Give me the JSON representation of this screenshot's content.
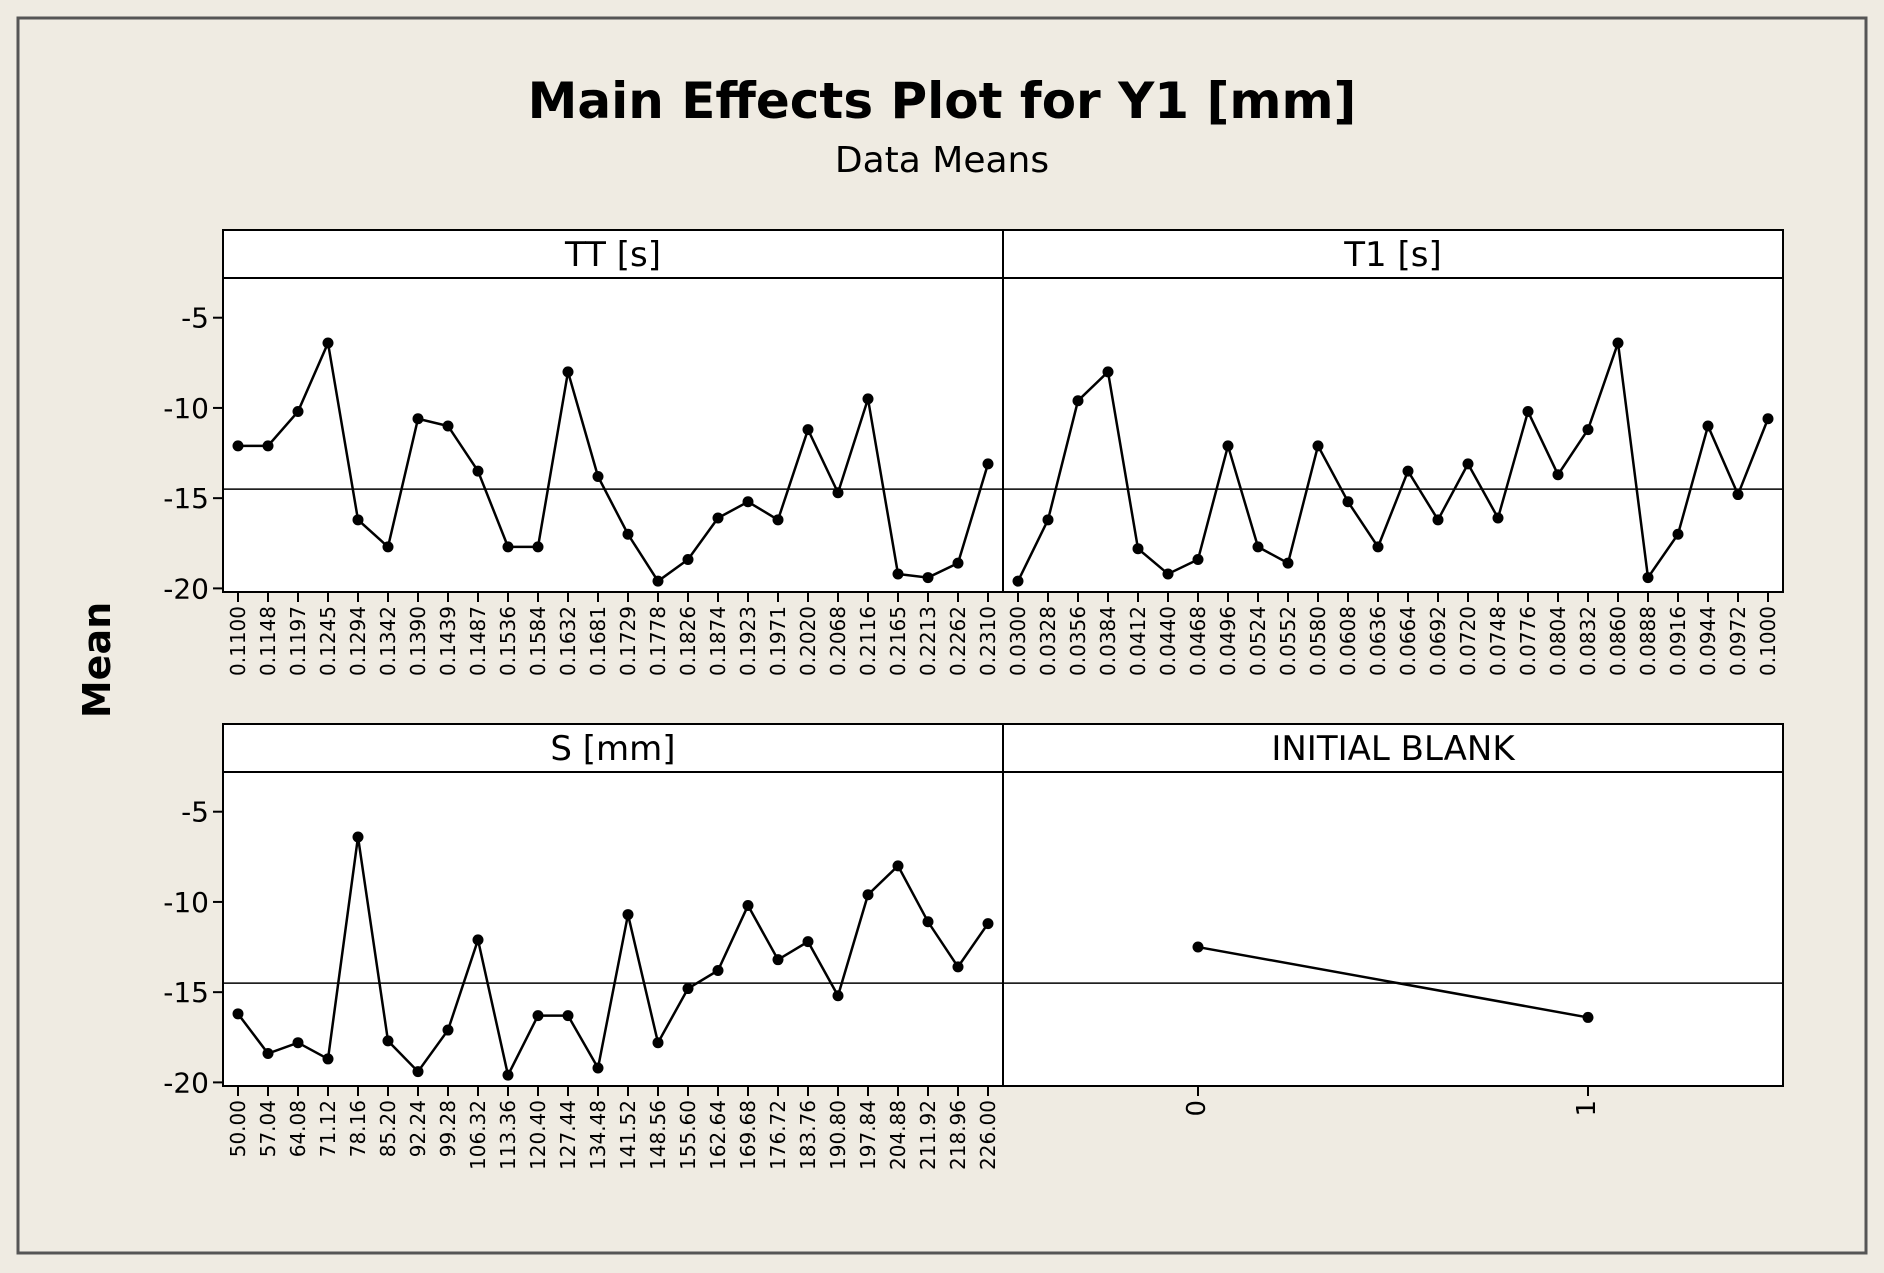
{
  "colors": {
    "background": "#efebe2",
    "line": "#000000",
    "panel": "#ffffff"
  },
  "chart_data": {
    "type": "line",
    "title": "Main Effects Plot for Y1 [mm]",
    "subtitle": "Data Means",
    "ylabel": "Mean",
    "ylim": [
      -20.2,
      -2.8
    ],
    "yticks": [
      -5,
      -10,
      -15,
      -20
    ],
    "reference_line": -14.5,
    "panels": [
      {
        "name": "TT [s]",
        "x": [
          "0.1100",
          "0.1148",
          "0.1197",
          "0.1245",
          "0.1294",
          "0.1342",
          "0.1390",
          "0.1439",
          "0.1487",
          "0.1536",
          "0.1584",
          "0.1632",
          "0.1681",
          "0.1729",
          "0.1778",
          "0.1826",
          "0.1874",
          "0.1923",
          "0.1971",
          "0.2020",
          "0.2068",
          "0.2116",
          "0.2165",
          "0.2213",
          "0.2262",
          "0.2310"
        ],
        "values": [
          -12.1,
          -12.1,
          -10.2,
          -6.4,
          -16.2,
          -17.7,
          -10.6,
          -11.0,
          -13.5,
          -17.7,
          -17.7,
          -8.0,
          -13.8,
          -17.0,
          -19.6,
          -18.4,
          -16.1,
          -15.2,
          -16.2,
          -11.2,
          -14.7,
          -9.5,
          -19.2,
          -19.4,
          -18.6,
          -13.1
        ]
      },
      {
        "name": "T1 [s]",
        "x": [
          "0.0300",
          "0.0328",
          "0.0356",
          "0.0384",
          "0.0412",
          "0.0440",
          "0.0468",
          "0.0496",
          "0.0524",
          "0.0552",
          "0.0580",
          "0.0608",
          "0.0636",
          "0.0664",
          "0.0692",
          "0.0720",
          "0.0748",
          "0.0776",
          "0.0804",
          "0.0832",
          "0.0860",
          "0.0888",
          "0.0916",
          "0.0944",
          "0.0972",
          "0.1000"
        ],
        "values": [
          -19.6,
          -16.2,
          -9.6,
          -8.0,
          -17.8,
          -19.2,
          -18.4,
          -12.1,
          -17.7,
          -18.6,
          -12.1,
          -15.2,
          -17.7,
          -13.5,
          -16.2,
          -13.1,
          -16.1,
          -10.2,
          -13.7,
          -11.2,
          -6.4,
          -19.4,
          -17.0,
          -11.0,
          -14.8,
          -10.6
        ]
      },
      {
        "name": "S [mm]",
        "x": [
          "50.00",
          "57.04",
          "64.08",
          "71.12",
          "78.16",
          "85.20",
          "92.24",
          "99.28",
          "106.32",
          "113.36",
          "120.40",
          "127.44",
          "134.48",
          "141.52",
          "148.56",
          "155.60",
          "162.64",
          "169.68",
          "176.72",
          "183.76",
          "190.80",
          "197.84",
          "204.88",
          "211.92",
          "218.96",
          "226.00"
        ],
        "values": [
          -16.2,
          -18.4,
          -17.8,
          -18.7,
          -6.4,
          -17.7,
          -19.4,
          -17.1,
          -12.1,
          -19.6,
          -16.3,
          -16.3,
          -19.2,
          -10.7,
          -17.8,
          -14.8,
          -13.8,
          -10.2,
          -13.2,
          -12.2,
          -15.2,
          -9.6,
          -8.0,
          -11.1,
          -13.6,
          -11.2
        ]
      },
      {
        "name": "INITIAL BLANK",
        "x": [
          "0",
          "1"
        ],
        "values": [
          -12.5,
          -16.4
        ]
      }
    ]
  }
}
